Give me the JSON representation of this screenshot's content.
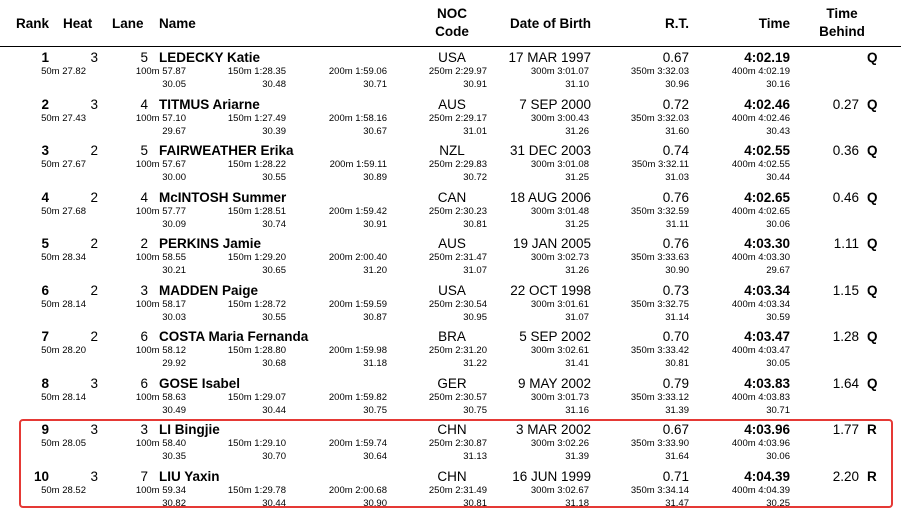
{
  "headers": {
    "rank": "Rank",
    "heat": "Heat",
    "lane": "Lane",
    "name": "Name",
    "noc1": "NOC",
    "noc2": "Code",
    "dob": "Date of Birth",
    "rt": "R.T.",
    "time": "Time",
    "behind1": "Time",
    "behind2": "Behind"
  },
  "rows": [
    {
      "rank": "1",
      "heat": "3",
      "lane": "5",
      "name": "LEDECKY Katie",
      "noc": "USA",
      "dob": "17 MAR 1997",
      "rt": "0.67",
      "time": "4:02.19",
      "behind": "",
      "q": "Q",
      "s": [
        "50m 27.82",
        "100m 57.87",
        "150m 1:28.35",
        "200m 1:59.06",
        "250m 2:29.97",
        "300m 3:01.07",
        "350m 3:32.03",
        "400m 4:02.19"
      ],
      "d": [
        "30.05",
        "30.48",
        "30.71",
        "30.91",
        "31.10",
        "30.96",
        "30.16"
      ]
    },
    {
      "rank": "2",
      "heat": "3",
      "lane": "4",
      "name": "TITMUS Ariarne",
      "noc": "AUS",
      "dob": "7 SEP 2000",
      "rt": "0.72",
      "time": "4:02.46",
      "behind": "0.27",
      "q": "Q",
      "s": [
        "50m 27.43",
        "100m 57.10",
        "150m 1:27.49",
        "200m 1:58.16",
        "250m 2:29.17",
        "300m 3:00.43",
        "350m 3:32.03",
        "400m 4:02.46"
      ],
      "d": [
        "29.67",
        "30.39",
        "30.67",
        "31.01",
        "31.26",
        "31.60",
        "30.43"
      ]
    },
    {
      "rank": "3",
      "heat": "2",
      "lane": "5",
      "name": "FAIRWEATHER Erika",
      "noc": "NZL",
      "dob": "31 DEC 2003",
      "rt": "0.74",
      "time": "4:02.55",
      "behind": "0.36",
      "q": "Q",
      "s": [
        "50m 27.67",
        "100m 57.67",
        "150m 1:28.22",
        "200m 1:59.11",
        "250m 2:29.83",
        "300m 3:01.08",
        "350m 3:32.11",
        "400m 4:02.55"
      ],
      "d": [
        "30.00",
        "30.55",
        "30.89",
        "30.72",
        "31.25",
        "31.03",
        "30.44"
      ]
    },
    {
      "rank": "4",
      "heat": "2",
      "lane": "4",
      "name": "McINTOSH Summer",
      "noc": "CAN",
      "dob": "18 AUG 2006",
      "rt": "0.76",
      "time": "4:02.65",
      "behind": "0.46",
      "q": "Q",
      "s": [
        "50m 27.68",
        "100m 57.77",
        "150m 1:28.51",
        "200m 1:59.42",
        "250m 2:30.23",
        "300m 3:01.48",
        "350m 3:32.59",
        "400m 4:02.65"
      ],
      "d": [
        "30.09",
        "30.74",
        "30.91",
        "30.81",
        "31.25",
        "31.11",
        "30.06"
      ]
    },
    {
      "rank": "5",
      "heat": "2",
      "lane": "2",
      "name": "PERKINS Jamie",
      "noc": "AUS",
      "dob": "19 JAN 2005",
      "rt": "0.76",
      "time": "4:03.30",
      "behind": "1.11",
      "q": "Q",
      "s": [
        "50m 28.34",
        "100m 58.55",
        "150m 1:29.20",
        "200m 2:00.40",
        "250m 2:31.47",
        "300m 3:02.73",
        "350m 3:33.63",
        "400m 4:03.30"
      ],
      "d": [
        "30.21",
        "30.65",
        "31.20",
        "31.07",
        "31.26",
        "30.90",
        "29.67"
      ]
    },
    {
      "rank": "6",
      "heat": "2",
      "lane": "3",
      "name": "MADDEN Paige",
      "noc": "USA",
      "dob": "22 OCT 1998",
      "rt": "0.73",
      "time": "4:03.34",
      "behind": "1.15",
      "q": "Q",
      "s": [
        "50m 28.14",
        "100m 58.17",
        "150m 1:28.72",
        "200m 1:59.59",
        "250m 2:30.54",
        "300m 3:01.61",
        "350m 3:32.75",
        "400m 4:03.34"
      ],
      "d": [
        "30.03",
        "30.55",
        "30.87",
        "30.95",
        "31.07",
        "31.14",
        "30.59"
      ]
    },
    {
      "rank": "7",
      "heat": "2",
      "lane": "6",
      "name": "COSTA Maria Fernanda",
      "noc": "BRA",
      "dob": "5 SEP 2002",
      "rt": "0.70",
      "time": "4:03.47",
      "behind": "1.28",
      "q": "Q",
      "s": [
        "50m 28.20",
        "100m 58.12",
        "150m 1:28.80",
        "200m 1:59.98",
        "250m 2:31.20",
        "300m 3:02.61",
        "350m 3:33.42",
        "400m 4:03.47"
      ],
      "d": [
        "29.92",
        "30.68",
        "31.18",
        "31.22",
        "31.41",
        "30.81",
        "30.05"
      ]
    },
    {
      "rank": "8",
      "heat": "3",
      "lane": "6",
      "name": "GOSE Isabel",
      "noc": "GER",
      "dob": "9 MAY 2002",
      "rt": "0.79",
      "time": "4:03.83",
      "behind": "1.64",
      "q": "Q",
      "s": [
        "50m 28.14",
        "100m 58.63",
        "150m 1:29.07",
        "200m 1:59.82",
        "250m 2:30.57",
        "300m 3:01.73",
        "350m 3:33.12",
        "400m 4:03.83"
      ],
      "d": [
        "30.49",
        "30.44",
        "30.75",
        "30.75",
        "31.16",
        "31.39",
        "30.71"
      ]
    },
    {
      "rank": "9",
      "heat": "3",
      "lane": "3",
      "name": "LI Bingjie",
      "noc": "CHN",
      "dob": "3 MAR 2002",
      "rt": "0.67",
      "time": "4:03.96",
      "behind": "1.77",
      "q": "R",
      "s": [
        "50m 28.05",
        "100m 58.40",
        "150m 1:29.10",
        "200m 1:59.74",
        "250m 2:30.87",
        "300m 3:02.26",
        "350m 3:33.90",
        "400m 4:03.96"
      ],
      "d": [
        "30.35",
        "30.70",
        "30.64",
        "31.13",
        "31.39",
        "31.64",
        "30.06"
      ]
    },
    {
      "rank": "10",
      "heat": "3",
      "lane": "7",
      "name": "LIU Yaxin",
      "noc": "CHN",
      "dob": "16 JUN 1999",
      "rt": "0.71",
      "time": "4:04.39",
      "behind": "2.20",
      "q": "R",
      "s": [
        "50m 28.52",
        "100m 59.34",
        "150m 1:29.78",
        "200m 2:00.68",
        "250m 2:31.49",
        "300m 3:02.67",
        "350m 3:34.14",
        "400m 4:04.39"
      ],
      "d": [
        "30.82",
        "30.44",
        "30.90",
        "30.81",
        "31.18",
        "31.47",
        "30.25"
      ]
    }
  ],
  "highlight": {
    "color": "#e53935"
  }
}
